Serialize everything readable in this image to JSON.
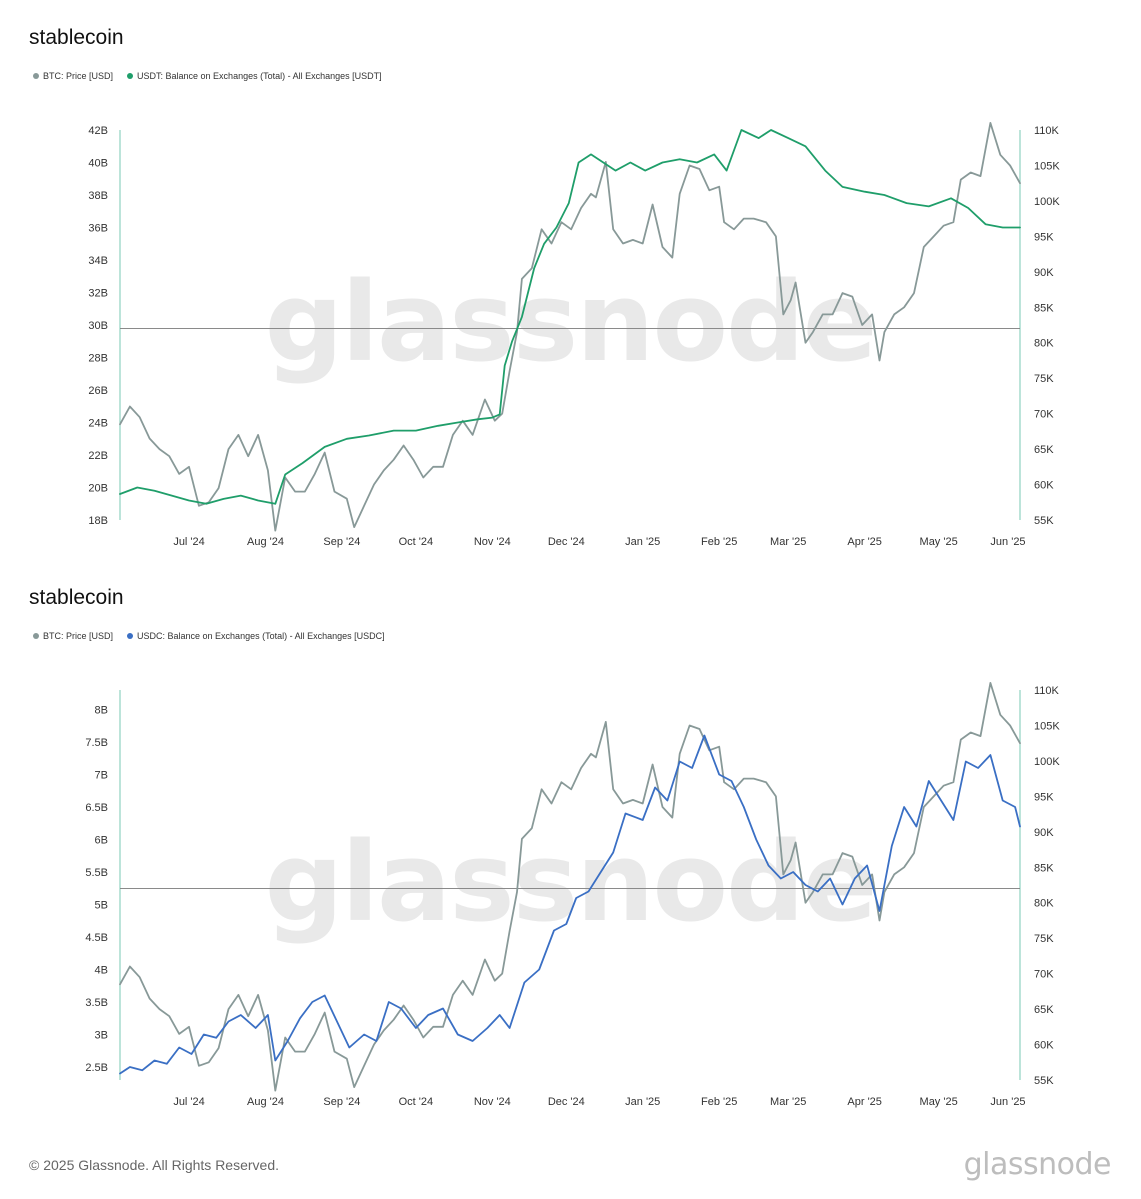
{
  "footer": {
    "copyright": "© 2025 Glassnode. All Rights Reserved.",
    "logo": "glassnode"
  },
  "watermark": "glassnode",
  "chart_data": [
    {
      "type": "line",
      "title": "stablecoin",
      "months": [
        "Jul '24",
        "Aug '24",
        "Sep '24",
        "Oct '24",
        "Nov '24",
        "Dec '24",
        "Jan '25",
        "Feb '25",
        "Mar '25",
        "Apr '25",
        "May '25",
        "Jun '25"
      ],
      "x_range": [
        "2024-06-03",
        "2025-06-03"
      ],
      "y_left": {
        "ticks": [
          "18B",
          "20B",
          "22B",
          "24B",
          "26B",
          "28B",
          "30B",
          "32B",
          "34B",
          "36B",
          "38B",
          "40B",
          "42B"
        ],
        "min": 18,
        "max": 42
      },
      "y_right": {
        "ticks": [
          "55K",
          "60K",
          "65K",
          "70K",
          "75K",
          "80K",
          "85K",
          "90K",
          "95K",
          "100K",
          "105K",
          "110K"
        ],
        "min": 55,
        "max": 110
      },
      "colors": {
        "btc": "#889998",
        "stable": "#1f9e6a",
        "axis": "#8fd2c0"
      },
      "reference_line_btc_k": 82,
      "series": [
        {
          "name": "BTC: Price [USD]",
          "axis": "right",
          "x": [
            "2024-06-03",
            "2024-06-07",
            "2024-06-11",
            "2024-06-15",
            "2024-06-19",
            "2024-06-23",
            "2024-06-27",
            "2024-07-01",
            "2024-07-05",
            "2024-07-09",
            "2024-07-13",
            "2024-07-17",
            "2024-07-21",
            "2024-07-25",
            "2024-07-29",
            "2024-08-02",
            "2024-08-05",
            "2024-08-09",
            "2024-08-13",
            "2024-08-17",
            "2024-08-21",
            "2024-08-25",
            "2024-08-29",
            "2024-09-03",
            "2024-09-06",
            "2024-09-10",
            "2024-09-14",
            "2024-09-18",
            "2024-09-22",
            "2024-09-26",
            "2024-09-30",
            "2024-10-04",
            "2024-10-08",
            "2024-10-12",
            "2024-10-16",
            "2024-10-20",
            "2024-10-24",
            "2024-10-29",
            "2024-11-02",
            "2024-11-05",
            "2024-11-08",
            "2024-11-11",
            "2024-11-13",
            "2024-11-17",
            "2024-11-21",
            "2024-11-25",
            "2024-11-29",
            "2024-12-03",
            "2024-12-07",
            "2024-12-11",
            "2024-12-13",
            "2024-12-17",
            "2024-12-20",
            "2024-12-24",
            "2024-12-28",
            "2025-01-01",
            "2025-01-05",
            "2025-01-09",
            "2025-01-13",
            "2025-01-16",
            "2025-01-20",
            "2025-01-24",
            "2025-01-28",
            "2025-02-01",
            "2025-02-03",
            "2025-02-07",
            "2025-02-11",
            "2025-02-15",
            "2025-02-20",
            "2025-02-24",
            "2025-02-27",
            "2025-03-02",
            "2025-03-04",
            "2025-03-08",
            "2025-03-11",
            "2025-03-15",
            "2025-03-19",
            "2025-03-23",
            "2025-03-27",
            "2025-03-31",
            "2025-04-04",
            "2025-04-07",
            "2025-04-09",
            "2025-04-13",
            "2025-04-17",
            "2025-04-21",
            "2025-04-25",
            "2025-04-29",
            "2025-05-03",
            "2025-05-07",
            "2025-05-10",
            "2025-05-14",
            "2025-05-18",
            "2025-05-22",
            "2025-05-26",
            "2025-05-30",
            "2025-06-03"
          ],
          "values": [
            68.5,
            71,
            69.5,
            66.5,
            65,
            64,
            61.5,
            62.5,
            57,
            57.5,
            59.5,
            65,
            67,
            64,
            67,
            62,
            53.5,
            61,
            59,
            59,
            61.5,
            64.5,
            59,
            58,
            54,
            57,
            60,
            62,
            63.5,
            65.5,
            63.5,
            61,
            62.5,
            62.5,
            67,
            69,
            67,
            72,
            69,
            70,
            76,
            81.5,
            89,
            90.5,
            96,
            94,
            97,
            96,
            99,
            101,
            100.5,
            105.5,
            96,
            94,
            94.5,
            94,
            99.5,
            93.5,
            92,
            101,
            105,
            104.5,
            101.5,
            102,
            97,
            96,
            97.5,
            97.5,
            97,
            95,
            84,
            86,
            88.5,
            80,
            81.5,
            84,
            84,
            87,
            86.5,
            82.5,
            84,
            77.5,
            81.5,
            84,
            85,
            87,
            93.5,
            95,
            96.5,
            97,
            103,
            104,
            103.5,
            111,
            106.5,
            105,
            102.5
          ]
        },
        {
          "name": "USDT: Balance on Exchanges (Total) - All Exchanges [USDT]",
          "axis": "left",
          "x": [
            "2024-06-03",
            "2024-06-10",
            "2024-06-17",
            "2024-06-24",
            "2024-07-01",
            "2024-07-08",
            "2024-07-15",
            "2024-07-22",
            "2024-07-29",
            "2024-08-05",
            "2024-08-09",
            "2024-08-16",
            "2024-08-25",
            "2024-09-03",
            "2024-09-12",
            "2024-09-22",
            "2024-10-01",
            "2024-10-10",
            "2024-10-18",
            "2024-10-26",
            "2024-11-01",
            "2024-11-04",
            "2024-11-06",
            "2024-11-09",
            "2024-11-13",
            "2024-11-18",
            "2024-11-22",
            "2024-11-27",
            "2024-12-02",
            "2024-12-06",
            "2024-12-11",
            "2024-12-16",
            "2024-12-21",
            "2024-12-27",
            "2025-01-02",
            "2025-01-09",
            "2025-01-16",
            "2025-01-23",
            "2025-01-30",
            "2025-02-04",
            "2025-02-10",
            "2025-02-17",
            "2025-02-22",
            "2025-03-01",
            "2025-03-08",
            "2025-03-16",
            "2025-03-23",
            "2025-04-01",
            "2025-04-09",
            "2025-04-18",
            "2025-04-27",
            "2025-05-06",
            "2025-05-13",
            "2025-05-20",
            "2025-05-27",
            "2025-06-03"
          ],
          "values": [
            19.6,
            20.0,
            19.8,
            19.5,
            19.2,
            19.0,
            19.3,
            19.5,
            19.2,
            19.0,
            20.8,
            21.5,
            22.5,
            23.0,
            23.2,
            23.5,
            23.5,
            23.8,
            24.0,
            24.2,
            24.3,
            24.5,
            27.5,
            29.0,
            30.5,
            33.5,
            35.0,
            36.0,
            37.5,
            40.0,
            40.5,
            40.0,
            39.5,
            40.0,
            39.5,
            40.0,
            40.2,
            40.0,
            40.5,
            39.5,
            42.0,
            41.5,
            42.0,
            41.5,
            41.0,
            39.5,
            38.5,
            38.2,
            38.0,
            37.5,
            37.3,
            37.8,
            37.2,
            36.2,
            36.0,
            36.0
          ]
        }
      ]
    },
    {
      "type": "line",
      "title": "stablecoin",
      "months": [
        "Jul '24",
        "Aug '24",
        "Sep '24",
        "Oct '24",
        "Nov '24",
        "Dec '24",
        "Jan '25",
        "Feb '25",
        "Mar '25",
        "Apr '25",
        "May '25",
        "Jun '25"
      ],
      "x_range": [
        "2024-06-03",
        "2025-06-03"
      ],
      "y_left": {
        "ticks": [
          "2.5B",
          "3B",
          "3.5B",
          "4B",
          "4.5B",
          "5B",
          "5.5B",
          "6B",
          "6.5B",
          "7B",
          "7.5B",
          "8B"
        ],
        "min": 2.3,
        "max": 8.3
      },
      "y_right": {
        "ticks": [
          "55K",
          "60K",
          "65K",
          "70K",
          "75K",
          "80K",
          "85K",
          "90K",
          "95K",
          "100K",
          "105K",
          "110K"
        ],
        "min": 55,
        "max": 110
      },
      "colors": {
        "btc": "#889998",
        "stable": "#3a6fc4",
        "axis": "#8fd2c0"
      },
      "reference_line_btc_k": 82,
      "series": [
        {
          "name": "BTC: Price [USD]",
          "axis": "right",
          "x": [
            "2024-06-03",
            "2024-06-07",
            "2024-06-11",
            "2024-06-15",
            "2024-06-19",
            "2024-06-23",
            "2024-06-27",
            "2024-07-01",
            "2024-07-05",
            "2024-07-09",
            "2024-07-13",
            "2024-07-17",
            "2024-07-21",
            "2024-07-25",
            "2024-07-29",
            "2024-08-02",
            "2024-08-05",
            "2024-08-09",
            "2024-08-13",
            "2024-08-17",
            "2024-08-21",
            "2024-08-25",
            "2024-08-29",
            "2024-09-03",
            "2024-09-06",
            "2024-09-10",
            "2024-09-14",
            "2024-09-18",
            "2024-09-22",
            "2024-09-26",
            "2024-09-30",
            "2024-10-04",
            "2024-10-08",
            "2024-10-12",
            "2024-10-16",
            "2024-10-20",
            "2024-10-24",
            "2024-10-29",
            "2024-11-02",
            "2024-11-05",
            "2024-11-08",
            "2024-11-11",
            "2024-11-13",
            "2024-11-17",
            "2024-11-21",
            "2024-11-25",
            "2024-11-29",
            "2024-12-03",
            "2024-12-07",
            "2024-12-11",
            "2024-12-13",
            "2024-12-17",
            "2024-12-20",
            "2024-12-24",
            "2024-12-28",
            "2025-01-01",
            "2025-01-05",
            "2025-01-09",
            "2025-01-13",
            "2025-01-16",
            "2025-01-20",
            "2025-01-24",
            "2025-01-28",
            "2025-02-01",
            "2025-02-03",
            "2025-02-07",
            "2025-02-11",
            "2025-02-15",
            "2025-02-20",
            "2025-02-24",
            "2025-02-27",
            "2025-03-02",
            "2025-03-04",
            "2025-03-08",
            "2025-03-11",
            "2025-03-15",
            "2025-03-19",
            "2025-03-23",
            "2025-03-27",
            "2025-03-31",
            "2025-04-04",
            "2025-04-07",
            "2025-04-09",
            "2025-04-13",
            "2025-04-17",
            "2025-04-21",
            "2025-04-25",
            "2025-04-29",
            "2025-05-03",
            "2025-05-07",
            "2025-05-10",
            "2025-05-14",
            "2025-05-18",
            "2025-05-22",
            "2025-05-26",
            "2025-05-30",
            "2025-06-03"
          ],
          "values": [
            68.5,
            71,
            69.5,
            66.5,
            65,
            64,
            61.5,
            62.5,
            57,
            57.5,
            59.5,
            65,
            67,
            64,
            67,
            62,
            53.5,
            61,
            59,
            59,
            61.5,
            64.5,
            59,
            58,
            54,
            57,
            60,
            62,
            63.5,
            65.5,
            63.5,
            61,
            62.5,
            62.5,
            67,
            69,
            67,
            72,
            69,
            70,
            76,
            81.5,
            89,
            90.5,
            96,
            94,
            97,
            96,
            99,
            101,
            100.5,
            105.5,
            96,
            94,
            94.5,
            94,
            99.5,
            93.5,
            92,
            101,
            105,
            104.5,
            101.5,
            102,
            97,
            96,
            97.5,
            97.5,
            97,
            95,
            84,
            86,
            88.5,
            80,
            81.5,
            84,
            84,
            87,
            86.5,
            82.5,
            84,
            77.5,
            81.5,
            84,
            85,
            87,
            93.5,
            95,
            96.5,
            97,
            103,
            104,
            103.5,
            111,
            106.5,
            105,
            102.5
          ]
        },
        {
          "name": "USDC: Balance on Exchanges (Total) - All Exchanges [USDC]",
          "axis": "left",
          "x": [
            "2024-06-03",
            "2024-06-07",
            "2024-06-12",
            "2024-06-17",
            "2024-06-22",
            "2024-06-27",
            "2024-07-02",
            "2024-07-07",
            "2024-07-12",
            "2024-07-17",
            "2024-07-22",
            "2024-07-28",
            "2024-08-02",
            "2024-08-05",
            "2024-08-10",
            "2024-08-15",
            "2024-08-20",
            "2024-08-25",
            "2024-08-30",
            "2024-09-04",
            "2024-09-10",
            "2024-09-15",
            "2024-09-20",
            "2024-09-25",
            "2024-10-01",
            "2024-10-06",
            "2024-10-12",
            "2024-10-18",
            "2024-10-24",
            "2024-10-30",
            "2024-11-04",
            "2024-11-08",
            "2024-11-14",
            "2024-11-20",
            "2024-11-26",
            "2024-12-01",
            "2024-12-05",
            "2024-12-10",
            "2024-12-15",
            "2024-12-20",
            "2024-12-25",
            "2025-01-01",
            "2025-01-06",
            "2025-01-11",
            "2025-01-16",
            "2025-01-21",
            "2025-01-26",
            "2025-02-01",
            "2025-02-06",
            "2025-02-11",
            "2025-02-16",
            "2025-02-21",
            "2025-02-26",
            "2025-03-03",
            "2025-03-08",
            "2025-03-13",
            "2025-03-18",
            "2025-03-23",
            "2025-03-28",
            "2025-04-02",
            "2025-04-07",
            "2025-04-12",
            "2025-04-17",
            "2025-04-22",
            "2025-04-27",
            "2025-05-02",
            "2025-05-07",
            "2025-05-12",
            "2025-05-17",
            "2025-05-22",
            "2025-05-27",
            "2025-06-01",
            "2025-06-03"
          ],
          "values": [
            2.4,
            2.5,
            2.45,
            2.6,
            2.55,
            2.8,
            2.7,
            3.0,
            2.95,
            3.2,
            3.3,
            3.1,
            3.3,
            2.6,
            2.9,
            3.25,
            3.5,
            3.6,
            3.2,
            2.8,
            3.0,
            2.9,
            3.5,
            3.4,
            3.1,
            3.3,
            3.4,
            3.0,
            2.9,
            3.1,
            3.3,
            3.1,
            3.8,
            4.0,
            4.6,
            4.7,
            5.1,
            5.2,
            5.5,
            5.8,
            6.4,
            6.3,
            6.8,
            6.6,
            7.2,
            7.1,
            7.6,
            7.0,
            6.9,
            6.5,
            6.0,
            5.6,
            5.4,
            5.5,
            5.3,
            5.2,
            5.4,
            5.0,
            5.4,
            5.6,
            4.9,
            5.9,
            6.5,
            6.2,
            6.9,
            6.6,
            6.3,
            7.2,
            7.1,
            7.3,
            6.6,
            6.5,
            6.2
          ]
        }
      ]
    }
  ]
}
